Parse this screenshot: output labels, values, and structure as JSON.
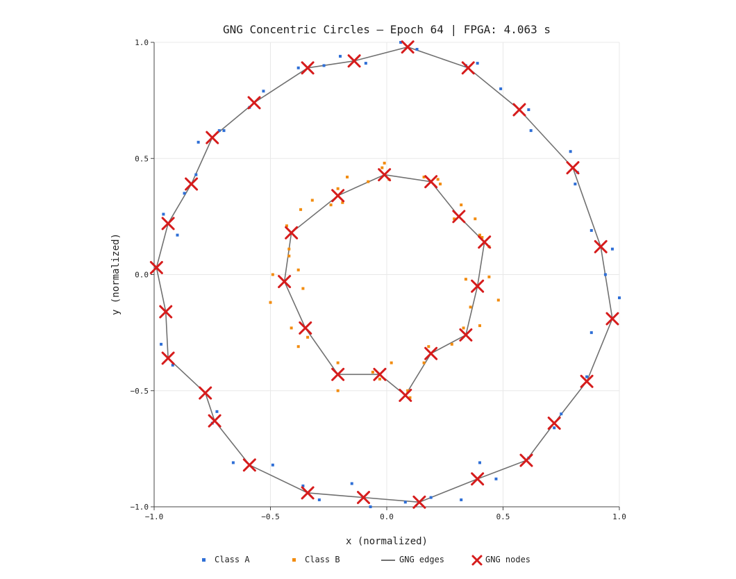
{
  "chart_data": {
    "type": "scatter",
    "title": "GNG Concentric Circles  —  Epoch 64  |  FPGA: 4.063 s",
    "xlabel": "x (normalized)",
    "ylabel": "y (normalized)",
    "xlim": [
      -1.0,
      1.0
    ],
    "ylim": [
      -1.0,
      1.0
    ],
    "x_ticks": [
      -1.0,
      -0.5,
      0.0,
      0.5,
      1.0
    ],
    "y_ticks": [
      -1.0,
      -0.5,
      0.0,
      0.5,
      1.0
    ],
    "x_tick_labels": [
      "−1.0",
      "−0.5",
      "0.0",
      "0.5",
      "1.0"
    ],
    "y_tick_labels": [
      "−1.0",
      "−0.5",
      "0.0",
      "0.5",
      "1.0"
    ],
    "grid": true,
    "legend_position": "bottom",
    "colors": {
      "class_a": "#2f6fd6",
      "class_b": "#f28c0f",
      "edges": "#707070",
      "nodes": "#d61c1c"
    },
    "legend": [
      {
        "key": "class_a",
        "label": "Class A",
        "marker": "square"
      },
      {
        "key": "class_b",
        "label": "Class B",
        "marker": "square"
      },
      {
        "key": "edges",
        "label": "GNG edges",
        "marker": "line"
      },
      {
        "key": "nodes",
        "label": "GNG nodes",
        "marker": "cross"
      }
    ],
    "class_a_points": [
      [
        0.06,
        1.0
      ],
      [
        0.13,
        0.97
      ],
      [
        -0.09,
        0.91
      ],
      [
        -0.2,
        0.94
      ],
      [
        -0.27,
        0.9
      ],
      [
        -0.38,
        0.89
      ],
      [
        -0.53,
        0.79
      ],
      [
        -0.59,
        0.72
      ],
      [
        -0.7,
        0.62
      ],
      [
        -0.72,
        0.62
      ],
      [
        -0.81,
        0.57
      ],
      [
        -0.82,
        0.43
      ],
      [
        -0.87,
        0.35
      ],
      [
        -0.96,
        0.26
      ],
      [
        -0.9,
        0.17
      ],
      [
        -0.97,
        -0.3
      ],
      [
        -0.92,
        -0.39
      ],
      [
        -0.75,
        -0.64
      ],
      [
        -0.73,
        -0.59
      ],
      [
        -0.66,
        -0.81
      ],
      [
        -0.49,
        -0.82
      ],
      [
        -0.36,
        -0.91
      ],
      [
        -0.29,
        -0.97
      ],
      [
        -0.15,
        -0.9
      ],
      [
        -0.07,
        -1.0
      ],
      [
        0.08,
        -0.98
      ],
      [
        0.19,
        -0.96
      ],
      [
        0.32,
        -0.97
      ],
      [
        0.4,
        -0.81
      ],
      [
        0.47,
        -0.88
      ],
      [
        0.61,
        -0.79
      ],
      [
        0.72,
        -0.66
      ],
      [
        0.75,
        -0.6
      ],
      [
        0.86,
        -0.44
      ],
      [
        0.88,
        -0.25
      ],
      [
        0.94,
        0.0
      ],
      [
        1.0,
        -0.1
      ],
      [
        0.97,
        0.11
      ],
      [
        0.88,
        0.19
      ],
      [
        0.81,
        0.39
      ],
      [
        0.79,
        0.53
      ],
      [
        0.82,
        0.44
      ],
      [
        0.62,
        0.62
      ],
      [
        0.61,
        0.71
      ],
      [
        0.49,
        0.8
      ],
      [
        0.39,
        0.91
      ],
      [
        0.34,
        0.9
      ]
    ],
    "class_b_points": [
      [
        -0.01,
        0.48
      ],
      [
        0.01,
        0.41
      ],
      [
        -0.02,
        0.46
      ],
      [
        -0.08,
        0.4
      ],
      [
        -0.17,
        0.42
      ],
      [
        -0.21,
        0.37
      ],
      [
        -0.19,
        0.31
      ],
      [
        -0.24,
        0.3
      ],
      [
        -0.32,
        0.32
      ],
      [
        -0.37,
        0.28
      ],
      [
        -0.43,
        0.21
      ],
      [
        -0.42,
        0.11
      ],
      [
        -0.42,
        0.08
      ],
      [
        -0.49,
        0.0
      ],
      [
        -0.38,
        0.02
      ],
      [
        -0.36,
        -0.06
      ],
      [
        -0.5,
        -0.12
      ],
      [
        -0.41,
        -0.23
      ],
      [
        -0.38,
        -0.31
      ],
      [
        -0.34,
        -0.27
      ],
      [
        -0.21,
        -0.38
      ],
      [
        -0.21,
        -0.5
      ],
      [
        -0.06,
        -0.42
      ],
      [
        -0.03,
        -0.45
      ],
      [
        0.02,
        -0.38
      ],
      [
        0.1,
        -0.53
      ],
      [
        0.09,
        -0.5
      ],
      [
        0.16,
        -0.38
      ],
      [
        0.18,
        -0.31
      ],
      [
        0.28,
        -0.3
      ],
      [
        0.33,
        -0.23
      ],
      [
        0.4,
        -0.22
      ],
      [
        0.36,
        -0.14
      ],
      [
        0.34,
        -0.02
      ],
      [
        0.44,
        -0.01
      ],
      [
        0.48,
        -0.11
      ],
      [
        0.44,
        0.12
      ],
      [
        0.41,
        0.16
      ],
      [
        0.4,
        0.17
      ],
      [
        0.38,
        0.24
      ],
      [
        0.32,
        0.3
      ],
      [
        0.29,
        0.24
      ],
      [
        0.23,
        0.39
      ],
      [
        0.22,
        0.41
      ],
      [
        0.16,
        0.42
      ]
    ],
    "outer_nodes": [
      [
        0.09,
        0.98
      ],
      [
        0.35,
        0.89
      ],
      [
        0.57,
        0.71
      ],
      [
        0.8,
        0.46
      ],
      [
        0.92,
        0.12
      ],
      [
        0.97,
        -0.19
      ],
      [
        0.86,
        -0.46
      ],
      [
        0.72,
        -0.64
      ],
      [
        0.6,
        -0.8
      ],
      [
        0.39,
        -0.88
      ],
      [
        0.14,
        -0.98
      ],
      [
        -0.1,
        -0.96
      ],
      [
        -0.34,
        -0.94
      ],
      [
        -0.59,
        -0.82
      ],
      [
        -0.74,
        -0.63
      ],
      [
        -0.78,
        -0.51
      ],
      [
        -0.94,
        -0.36
      ],
      [
        -0.95,
        -0.16
      ],
      [
        -0.99,
        0.03
      ],
      [
        -0.94,
        0.22
      ],
      [
        -0.84,
        0.39
      ],
      [
        -0.75,
        0.59
      ],
      [
        -0.57,
        0.74
      ],
      [
        -0.34,
        0.89
      ],
      [
        -0.14,
        0.92
      ]
    ],
    "inner_nodes": [
      [
        -0.01,
        0.43
      ],
      [
        0.19,
        0.4
      ],
      [
        0.31,
        0.25
      ],
      [
        0.42,
        0.14
      ],
      [
        0.39,
        -0.05
      ],
      [
        0.34,
        -0.26
      ],
      [
        0.19,
        -0.34
      ],
      [
        0.08,
        -0.52
      ],
      [
        -0.03,
        -0.43
      ],
      [
        -0.21,
        -0.43
      ],
      [
        -0.35,
        -0.23
      ],
      [
        -0.44,
        -0.03
      ],
      [
        -0.41,
        0.18
      ],
      [
        -0.21,
        0.34
      ]
    ]
  }
}
